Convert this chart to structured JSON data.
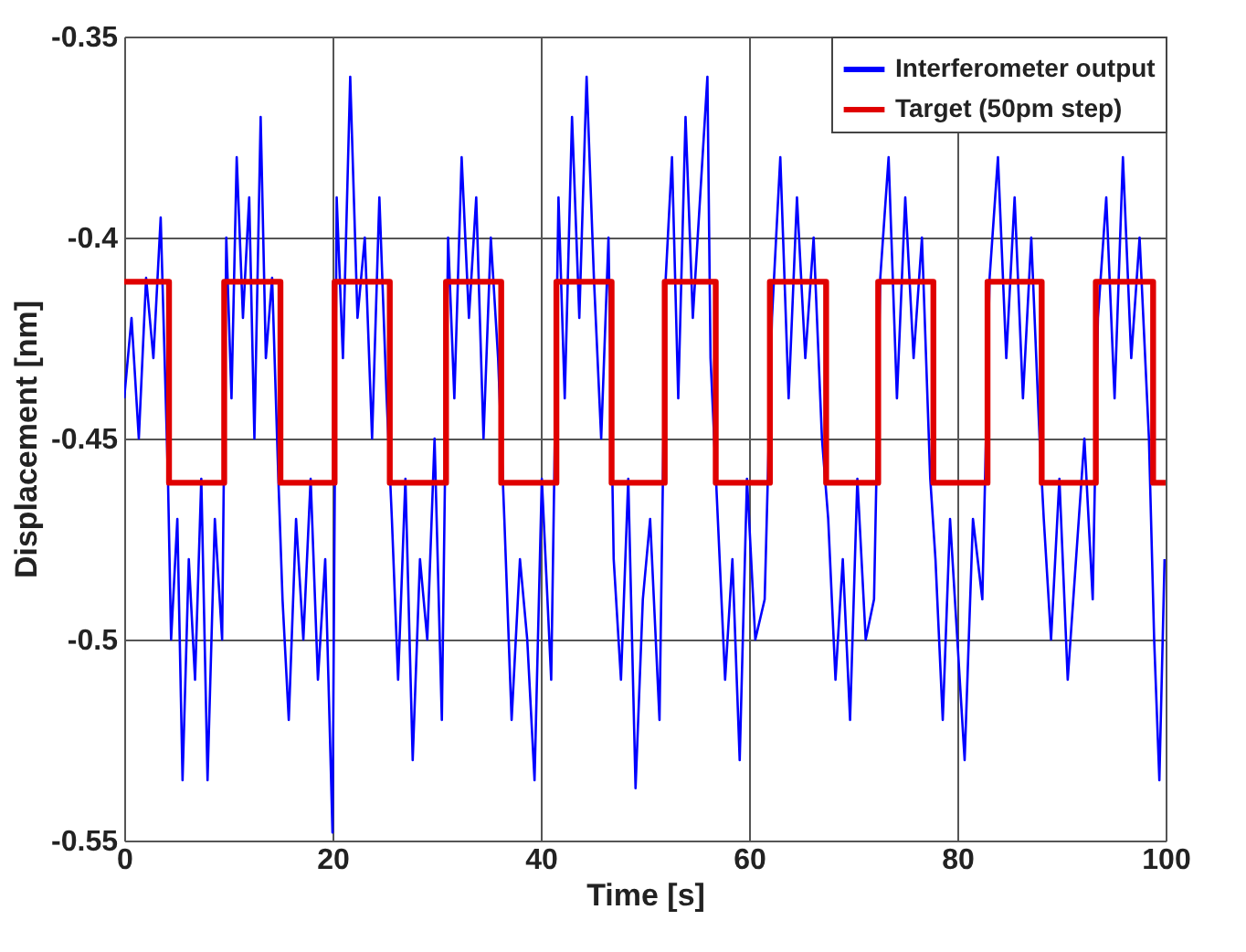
{
  "chart_data": {
    "type": "line",
    "xlabel": "Time [s]",
    "ylabel": "Displacement [nm]",
    "xlim": [
      0,
      100
    ],
    "xticks": [
      0,
      20,
      40,
      60,
      80,
      100
    ],
    "ylim": [
      -0.55,
      -0.35
    ],
    "yticks": [
      -0.55,
      -0.5,
      -0.45,
      -0.4,
      -0.35
    ],
    "grid": true,
    "legend": "top right",
    "line_style": "solid",
    "marker": "none",
    "series": [
      {
        "name": "Interferometer output",
        "color": "#0000ff",
        "x": [
          0,
          0.7,
          1.4,
          2.1,
          2.8,
          3.5,
          4.2,
          4.5,
          5.1,
          5.6,
          6.2,
          6.8,
          7.4,
          8.0,
          8.7,
          9.4,
          9.8,
          10.3,
          10.8,
          11.4,
          12.0,
          12.5,
          13.1,
          13.6,
          14.2,
          14.8,
          15.2,
          15.8,
          16.5,
          17.2,
          17.9,
          18.6,
          19.3,
          20.0,
          20.4,
          21.0,
          21.7,
          22.4,
          23.1,
          23.8,
          24.5,
          25.2,
          25.7,
          26.3,
          27.0,
          27.7,
          28.4,
          29.1,
          29.8,
          30.5,
          31.1,
          31.7,
          32.4,
          33.1,
          33.8,
          34.5,
          35.2,
          35.9,
          36.5,
          37.2,
          38.0,
          38.7,
          39.4,
          40.1,
          41.0,
          41.7,
          42.3,
          43.0,
          43.7,
          44.4,
          45.1,
          45.8,
          46.5,
          47.0,
          47.7,
          48.4,
          49.1,
          49.8,
          50.5,
          51.4,
          52.0,
          52.6,
          53.2,
          53.9,
          54.6,
          55.3,
          56.0,
          56.3,
          57.0,
          57.7,
          58.4,
          59.1,
          59.8,
          60.6,
          61.5,
          62.2,
          63.0,
          63.8,
          64.6,
          65.4,
          66.2,
          67.0,
          67.6,
          68.3,
          69.0,
          69.7,
          70.4,
          71.2,
          72.0,
          72.6,
          73.4,
          74.2,
          75.0,
          75.8,
          76.6,
          77.4,
          77.9,
          78.6,
          79.3,
          80.0,
          80.7,
          81.5,
          82.4,
          83.1,
          83.9,
          84.7,
          85.5,
          86.3,
          87.1,
          87.9,
          88.3,
          89.0,
          89.8,
          90.6,
          91.4,
          92.2,
          93.0,
          93.5,
          94.3,
          95.1,
          95.9,
          96.7,
          97.5,
          98.4,
          98.9,
          99.4,
          99.9
        ],
        "values": [
          -0.44,
          -0.42,
          -0.45,
          -0.41,
          -0.43,
          -0.395,
          -0.46,
          -0.5,
          -0.47,
          -0.535,
          -0.48,
          -0.51,
          -0.46,
          -0.535,
          -0.47,
          -0.5,
          -0.4,
          -0.44,
          -0.38,
          -0.42,
          -0.39,
          -0.45,
          -0.37,
          -0.43,
          -0.41,
          -0.46,
          -0.49,
          -0.52,
          -0.47,
          -0.5,
          -0.46,
          -0.51,
          -0.48,
          -0.548,
          -0.39,
          -0.43,
          -0.36,
          -0.42,
          -0.4,
          -0.45,
          -0.39,
          -0.44,
          -0.47,
          -0.51,
          -0.46,
          -0.53,
          -0.48,
          -0.5,
          -0.45,
          -0.52,
          -0.4,
          -0.44,
          -0.38,
          -0.42,
          -0.39,
          -0.45,
          -0.4,
          -0.43,
          -0.47,
          -0.52,
          -0.48,
          -0.5,
          -0.535,
          -0.46,
          -0.51,
          -0.39,
          -0.44,
          -0.37,
          -0.42,
          -0.36,
          -0.41,
          -0.45,
          -0.4,
          -0.48,
          -0.51,
          -0.46,
          -0.537,
          -0.49,
          -0.47,
          -0.52,
          -0.41,
          -0.38,
          -0.44,
          -0.37,
          -0.42,
          -0.39,
          -0.36,
          -0.43,
          -0.47,
          -0.51,
          -0.48,
          -0.53,
          -0.46,
          -0.5,
          -0.49,
          -0.42,
          -0.38,
          -0.44,
          -0.39,
          -0.43,
          -0.4,
          -0.45,
          -0.47,
          -0.51,
          -0.48,
          -0.52,
          -0.46,
          -0.5,
          -0.49,
          -0.41,
          -0.38,
          -0.44,
          -0.39,
          -0.43,
          -0.4,
          -0.46,
          -0.48,
          -0.52,
          -0.47,
          -0.5,
          -0.53,
          -0.47,
          -0.49,
          -0.41,
          -0.38,
          -0.43,
          -0.39,
          -0.44,
          -0.4,
          -0.45,
          -0.47,
          -0.5,
          -0.46,
          -0.51,
          -0.48,
          -0.45,
          -0.49,
          -0.42,
          -0.39,
          -0.44,
          -0.38,
          -0.43,
          -0.4,
          -0.45,
          -0.5,
          -0.535,
          -0.48
        ]
      },
      {
        "name": "Target (50pm step)",
        "color": "#e00000",
        "type": "step",
        "x": [
          0,
          4.3,
          9.6,
          15.0,
          20.2,
          25.5,
          30.9,
          36.2,
          41.5,
          46.8,
          51.9,
          56.8,
          62.0,
          67.4,
          72.4,
          77.7,
          82.9,
          88.1,
          93.3,
          98.8,
          100
        ],
        "values": [
          -0.411,
          -0.461,
          -0.411,
          -0.461,
          -0.411,
          -0.461,
          -0.411,
          -0.461,
          -0.411,
          -0.461,
          -0.411,
          -0.461,
          -0.411,
          -0.461,
          -0.411,
          -0.461,
          -0.411,
          -0.461,
          -0.411,
          -0.461,
          -0.461
        ]
      }
    ]
  }
}
